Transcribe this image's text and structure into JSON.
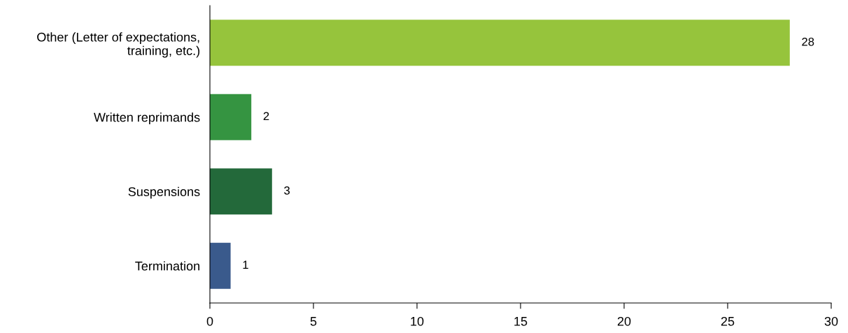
{
  "chart_data": {
    "type": "bar",
    "orientation": "horizontal",
    "categories": [
      "Other (Letter of expectations,\ntraining, etc.)",
      "Written reprimands",
      "Suspensions",
      "Termination"
    ],
    "values": [
      28,
      2,
      3,
      1
    ],
    "colors": [
      "#96c43c",
      "#359441",
      "#23693a",
      "#3a5a8c"
    ],
    "xlim": [
      0,
      30
    ],
    "xticks": [
      0,
      5,
      10,
      15,
      20,
      25,
      30
    ],
    "data_labels": true,
    "grid": false,
    "legend": false
  }
}
